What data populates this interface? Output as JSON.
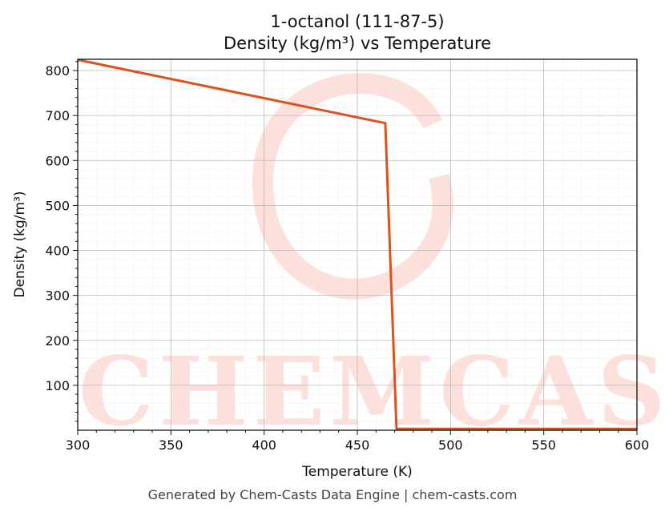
{
  "chart_data": {
    "type": "line",
    "title_line1": "1-octanol (111-87-5)",
    "title_line2": "Density (kg/m³) vs Temperature",
    "xlabel": "Temperature (K)",
    "ylabel": "Density (kg/m³)",
    "xlim": [
      300,
      600
    ],
    "ylim": [
      0,
      825
    ],
    "xticks": [
      300,
      350,
      400,
      450,
      500,
      550,
      600
    ],
    "yticks": [
      100,
      200,
      300,
      400,
      500,
      600,
      700,
      800
    ],
    "grid": true,
    "series": [
      {
        "color": "#d9531e",
        "x": [
          300,
          465,
          471,
          600
        ],
        "y": [
          824,
          683,
          3,
          3
        ]
      }
    ]
  },
  "watermark": {
    "text": "CHEMCASTS",
    "color": "#fde0db"
  },
  "footer": "Generated by Chem-Casts Data Engine | chem-casts.com"
}
